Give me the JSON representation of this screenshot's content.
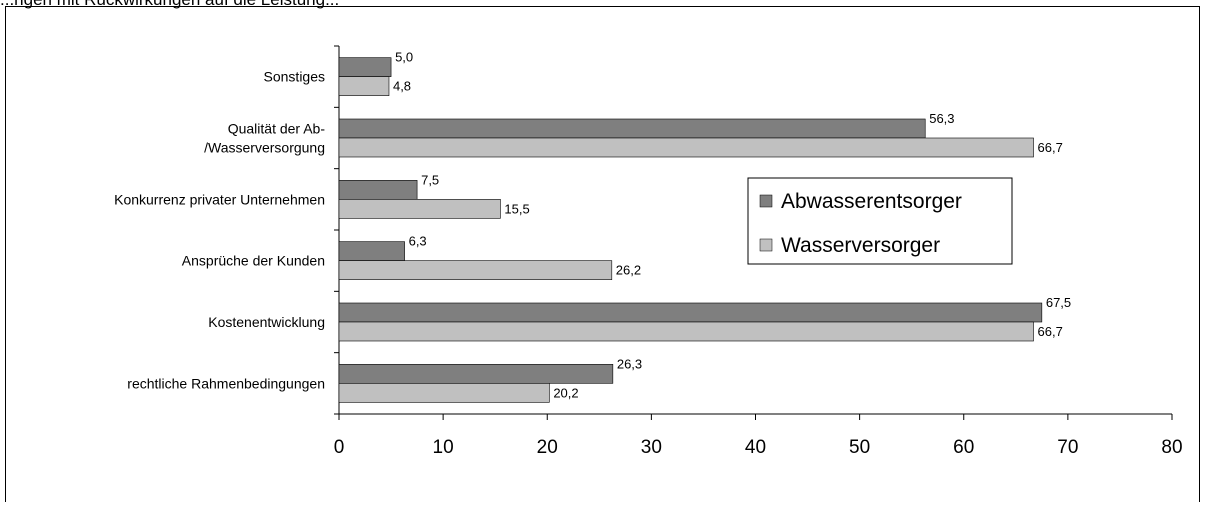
{
  "header": {
    "partial_text": "...ngen mit Rückwirkungen auf die Leistung..."
  },
  "chart_data": {
    "type": "bar",
    "orientation": "horizontal",
    "categories": [
      "Sonstiges",
      "Qualität der Ab-\n/Wasserversorgung",
      "Konkurrenz privater Unternehmen",
      "Ansprüche der Kunden",
      "Kostenentwicklung",
      "rechtliche Rahmenbedingungen"
    ],
    "series": [
      {
        "name": "Abwasserentsorger",
        "color": "#7f7f7f",
        "values": [
          5.0,
          56.3,
          7.5,
          6.3,
          67.5,
          26.3
        ]
      },
      {
        "name": "Wasserversorger",
        "color": "#c0c0c0",
        "values": [
          4.8,
          66.7,
          15.5,
          26.2,
          66.7,
          20.2
        ]
      }
    ],
    "value_labels": [
      [
        "5,0",
        "56,3",
        "7,5",
        "6,3",
        "67,5",
        "26,3"
      ],
      [
        "4,8",
        "66,7",
        "15,5",
        "26,2",
        "66,7",
        "20,2"
      ]
    ],
    "xlim": [
      0,
      80
    ],
    "xticks": [
      "0",
      "10",
      "20",
      "30",
      "40",
      "50",
      "60",
      "70",
      "80"
    ],
    "grid": false,
    "legend_position": "right-center"
  }
}
